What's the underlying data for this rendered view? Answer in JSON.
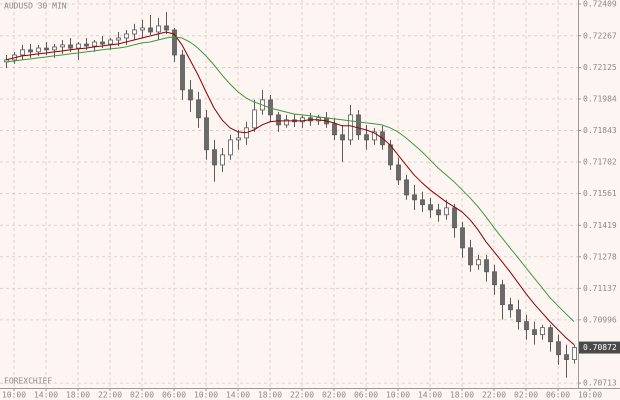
{
  "chart_data": {
    "type": "candlestick",
    "title": "AUDUSD 30 MIN",
    "watermark": "FOREXCHIEF",
    "up_color": "#ffffff",
    "down_color": "#6a6a6a",
    "wick_color": "#5a5a5a",
    "grid": true,
    "ylim": [
      0.70691,
      0.72427
    ],
    "yticks": [
      0.72409,
      0.72267,
      0.72125,
      0.71984,
      0.71843,
      0.71702,
      0.71561,
      0.71419,
      0.71278,
      0.71137,
      0.70996,
      0.70713
    ],
    "last_price": 0.70872,
    "xlim": [
      -0.75,
      71.5
    ],
    "xticks": [
      {
        "value": 1,
        "label": "10:00"
      },
      {
        "value": 5,
        "label": "14:00"
      },
      {
        "value": 9,
        "label": "18:00"
      },
      {
        "value": 13,
        "label": "22:00"
      },
      {
        "value": 17,
        "label": "02:00"
      },
      {
        "value": 21,
        "label": "06:00"
      },
      {
        "value": 25,
        "label": "10:00"
      },
      {
        "value": 29,
        "label": "14:00"
      },
      {
        "value": 33,
        "label": "18:00"
      },
      {
        "value": 37,
        "label": "22:00"
      },
      {
        "value": 41,
        "label": "02:00"
      },
      {
        "value": 45,
        "label": "06:00"
      },
      {
        "value": 49,
        "label": "10:00"
      },
      {
        "value": 53,
        "label": "14:00"
      },
      {
        "value": 57,
        "label": "18:00"
      },
      {
        "value": 61,
        "label": "22:00"
      },
      {
        "value": 65,
        "label": "02:00"
      },
      {
        "value": 69,
        "label": "06:00"
      },
      {
        "value": 73,
        "label": "10:00"
      }
    ],
    "candles": [
      [
        0.7215,
        0.72181,
        0.72123,
        0.72159
      ],
      [
        0.72159,
        0.72195,
        0.72141,
        0.72181
      ],
      [
        0.72181,
        0.72226,
        0.72159,
        0.72204
      ],
      [
        0.72204,
        0.7223,
        0.72168,
        0.72195
      ],
      [
        0.72195,
        0.72226,
        0.72177,
        0.72212
      ],
      [
        0.72212,
        0.72239,
        0.72181,
        0.72204
      ],
      [
        0.72204,
        0.7223,
        0.72168,
        0.72217
      ],
      [
        0.72217,
        0.72248,
        0.72186,
        0.72226
      ],
      [
        0.72226,
        0.72257,
        0.72195,
        0.72212
      ],
      [
        0.72212,
        0.72239,
        0.72159,
        0.7223
      ],
      [
        0.7223,
        0.72257,
        0.72204,
        0.72221
      ],
      [
        0.72221,
        0.72248,
        0.72195,
        0.72239
      ],
      [
        0.72239,
        0.72266,
        0.72212,
        0.7223
      ],
      [
        0.7223,
        0.72257,
        0.72204,
        0.72248
      ],
      [
        0.72248,
        0.72284,
        0.72221,
        0.72257
      ],
      [
        0.72257,
        0.72293,
        0.72226,
        0.72275
      ],
      [
        0.72275,
        0.7232,
        0.72248,
        0.72293
      ],
      [
        0.72293,
        0.72338,
        0.72257,
        0.72302
      ],
      [
        0.72302,
        0.7236,
        0.72271,
        0.72284
      ],
      [
        0.72284,
        0.72347,
        0.72248,
        0.72311
      ],
      [
        0.72311,
        0.72373,
        0.72275,
        0.72293
      ],
      [
        0.72293,
        0.72302,
        0.7215,
        0.72181
      ],
      [
        0.72181,
        0.72204,
        0.7198,
        0.72025
      ],
      [
        0.72025,
        0.72069,
        0.71926,
        0.7198
      ],
      [
        0.7198,
        0.72016,
        0.71855,
        0.719
      ],
      [
        0.719,
        0.71935,
        0.71712,
        0.71757
      ],
      [
        0.71757,
        0.71801,
        0.71614,
        0.71689
      ],
      [
        0.71689,
        0.71765,
        0.71658,
        0.71734
      ],
      [
        0.71734,
        0.71824,
        0.71712,
        0.71801
      ],
      [
        0.71801,
        0.71846,
        0.71757,
        0.7181
      ],
      [
        0.7181,
        0.71882,
        0.71779,
        0.71855
      ],
      [
        0.71855,
        0.7198,
        0.71837,
        0.71935
      ],
      [
        0.71935,
        0.72025,
        0.71913,
        0.7198
      ],
      [
        0.7198,
        0.72002,
        0.71882,
        0.71913
      ],
      [
        0.71913,
        0.71926,
        0.71837,
        0.71868
      ],
      [
        0.71868,
        0.71913,
        0.71855,
        0.71891
      ],
      [
        0.71891,
        0.71917,
        0.71859,
        0.71882
      ],
      [
        0.71882,
        0.71909,
        0.71855,
        0.719
      ],
      [
        0.719,
        0.71922,
        0.71864,
        0.71886
      ],
      [
        0.71886,
        0.71913,
        0.71868,
        0.719
      ],
      [
        0.719,
        0.71926,
        0.71855,
        0.71873
      ],
      [
        0.71873,
        0.719,
        0.71801,
        0.71824
      ],
      [
        0.71824,
        0.71868,
        0.71703,
        0.71801
      ],
      [
        0.71801,
        0.71958,
        0.71779,
        0.71913
      ],
      [
        0.71913,
        0.71935,
        0.71801,
        0.71824
      ],
      [
        0.71824,
        0.71868,
        0.71757,
        0.71801
      ],
      [
        0.71801,
        0.71855,
        0.71779,
        0.71837
      ],
      [
        0.71837,
        0.71864,
        0.71757,
        0.71779
      ],
      [
        0.71779,
        0.71801,
        0.71667,
        0.71689
      ],
      [
        0.71689,
        0.71721,
        0.716,
        0.71622
      ],
      [
        0.71622,
        0.71645,
        0.71533,
        0.71555
      ],
      [
        0.71555,
        0.716,
        0.71488,
        0.71533
      ],
      [
        0.71533,
        0.71569,
        0.71479,
        0.71511
      ],
      [
        0.71511,
        0.71542,
        0.71453,
        0.71488
      ],
      [
        0.71488,
        0.71515,
        0.71435,
        0.71466
      ],
      [
        0.71466,
        0.71533,
        0.71444,
        0.71497
      ],
      [
        0.71497,
        0.71515,
        0.71363,
        0.71408
      ],
      [
        0.71408,
        0.71435,
        0.71274,
        0.71318
      ],
      [
        0.71318,
        0.71354,
        0.71211,
        0.71242
      ],
      [
        0.71242,
        0.71287,
        0.7122,
        0.71265
      ],
      [
        0.71265,
        0.71287,
        0.71167,
        0.71211
      ],
      [
        0.71211,
        0.71242,
        0.71108,
        0.71153
      ],
      [
        0.71153,
        0.71175,
        0.70997,
        0.71064
      ],
      [
        0.71064,
        0.71095,
        0.71006,
        0.71041
      ],
      [
        0.71041,
        0.71086,
        0.70952,
        0.70988
      ],
      [
        0.70988,
        0.71019,
        0.70907,
        0.70952
      ],
      [
        0.70952,
        0.70988,
        0.70885,
        0.7093
      ],
      [
        0.7093,
        0.70974,
        0.70907,
        0.70961
      ],
      [
        0.70961,
        0.70974,
        0.70854,
        0.70898
      ],
      [
        0.70898,
        0.7093,
        0.70795,
        0.7084
      ],
      [
        0.7084,
        0.70885,
        0.70737,
        0.70818
      ],
      [
        0.70818,
        0.70885,
        0.708,
        0.70872
      ]
    ],
    "lines": [
      {
        "color": "#8b0000",
        "values": [
          0.72159,
          0.72168,
          0.72177,
          0.72181,
          0.72186,
          0.7219,
          0.72195,
          0.72199,
          0.72204,
          0.72208,
          0.72212,
          0.72217,
          0.72221,
          0.72226,
          0.7223,
          0.72239,
          0.72248,
          0.72257,
          0.72266,
          0.72275,
          0.72284,
          0.72275,
          0.72226,
          0.72159,
          0.72092,
          0.72016,
          0.71944,
          0.71891,
          0.71855,
          0.71837,
          0.71833,
          0.71846,
          0.71868,
          0.71882,
          0.71886,
          0.71886,
          0.71886,
          0.71886,
          0.71891,
          0.71891,
          0.71886,
          0.71877,
          0.71864,
          0.71864,
          0.71855,
          0.71846,
          0.71833,
          0.7181,
          0.71779,
          0.71734,
          0.71689,
          0.71645,
          0.71609,
          0.71578,
          0.71551,
          0.71524,
          0.71502,
          0.71479,
          0.71444,
          0.71399,
          0.71345,
          0.71301,
          0.71256,
          0.71211,
          0.71162,
          0.71113,
          0.71068,
          0.71028,
          0.70988,
          0.70952,
          0.70916,
          0.70885
        ]
      },
      {
        "color": "#3c9a3c",
        "values": [
          0.7215,
          0.72154,
          0.72159,
          0.72163,
          0.72168,
          0.72172,
          0.72177,
          0.72181,
          0.72186,
          0.7219,
          0.72195,
          0.72199,
          0.72204,
          0.72208,
          0.72212,
          0.72217,
          0.72226,
          0.72235,
          0.72239,
          0.72248,
          0.72257,
          0.72262,
          0.72257,
          0.72239,
          0.72212,
          0.72177,
          0.72136,
          0.72092,
          0.72051,
          0.72016,
          0.71989,
          0.71971,
          0.71958,
          0.71944,
          0.71935,
          0.71926,
          0.71917,
          0.71913,
          0.71909,
          0.71904,
          0.719,
          0.71895,
          0.71891,
          0.71886,
          0.71882,
          0.71877,
          0.71873,
          0.71868,
          0.71855,
          0.71837,
          0.7181,
          0.71779,
          0.71748,
          0.71712,
          0.71676,
          0.71645,
          0.71614,
          0.71578,
          0.71542,
          0.71502,
          0.71457,
          0.71408,
          0.71363,
          0.71318,
          0.71274,
          0.71229,
          0.71184,
          0.7114,
          0.71095,
          0.71059,
          0.71023,
          0.70988
        ]
      }
    ]
  }
}
